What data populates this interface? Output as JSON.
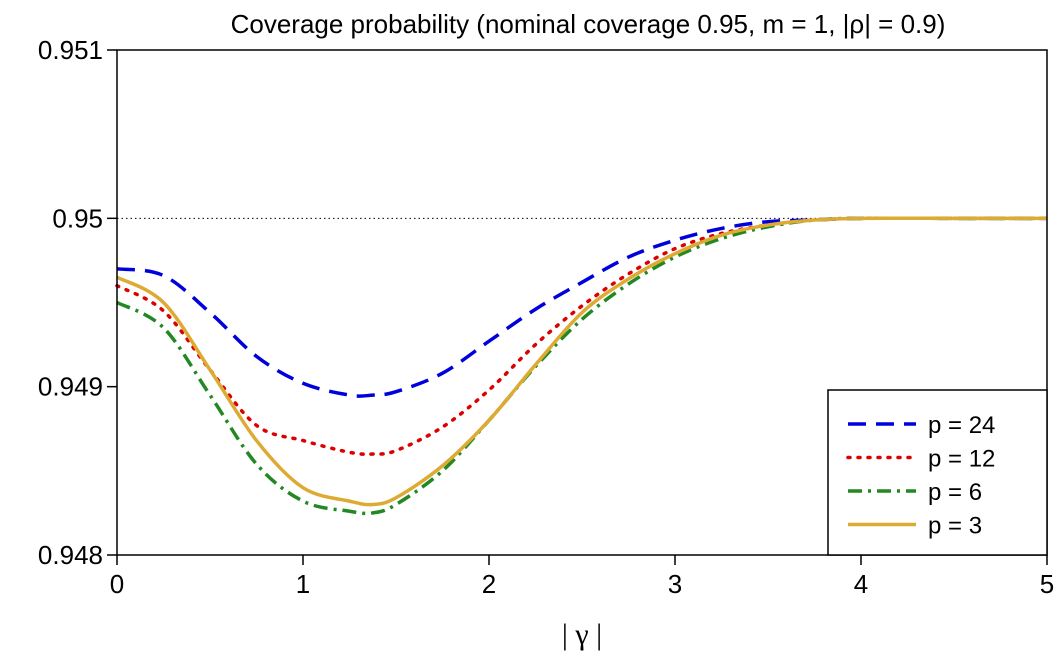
{
  "chart_data": {
    "type": "line",
    "title": "Coverage probability (nominal coverage 0.95, m = 1, |ρ| = 0.9)",
    "xlabel": "| γ |",
    "ylabel": "",
    "xlim": [
      0,
      5
    ],
    "ylim": [
      0.948,
      0.951
    ],
    "xticks": [
      0,
      1,
      2,
      3,
      4,
      5
    ],
    "xtick_labels": [
      "0",
      "1",
      "2",
      "3",
      "4",
      "5"
    ],
    "yticks": [
      0.948,
      0.949,
      0.95,
      0.951
    ],
    "ytick_labels": [
      "0.948",
      "0.949",
      "0.95",
      "0.951"
    ],
    "reference_line": {
      "y": 0.95,
      "style": "dotted",
      "color": "#000000"
    },
    "grid": false,
    "legend_position": "bottom-right",
    "x": [
      0,
      0.25,
      0.5,
      0.75,
      1.0,
      1.25,
      1.375,
      1.5,
      1.75,
      2.0,
      2.25,
      2.5,
      2.75,
      3.0,
      3.25,
      3.5,
      3.75,
      4.0,
      4.5,
      5.0
    ],
    "series": [
      {
        "name": "p = 24",
        "color": "#0000dd",
        "dash": "dashed",
        "values": [
          0.9497,
          0.94966,
          0.94944,
          0.94918,
          0.94902,
          0.94895,
          0.94895,
          0.94897,
          0.94908,
          0.94927,
          0.94946,
          0.94962,
          0.94977,
          0.94987,
          0.94994,
          0.94998,
          0.94999,
          0.95,
          0.95,
          0.95
        ]
      },
      {
        "name": "p = 12",
        "color": "#dd0000",
        "dash": "dotted",
        "values": [
          0.9496,
          0.94945,
          0.9491,
          0.94877,
          0.94868,
          0.94861,
          0.9486,
          0.94862,
          0.94876,
          0.94898,
          0.94925,
          0.94948,
          0.94967,
          0.94982,
          0.94991,
          0.94996,
          0.94999,
          0.95,
          0.95,
          0.95
        ]
      },
      {
        "name": "p = 6",
        "color": "#228822",
        "dash": "dashdot",
        "values": [
          0.9495,
          0.94935,
          0.94895,
          0.94854,
          0.94832,
          0.94826,
          0.94825,
          0.9483,
          0.9485,
          0.9488,
          0.94912,
          0.9494,
          0.94961,
          0.94977,
          0.94988,
          0.94995,
          0.94999,
          0.95,
          0.95,
          0.95
        ]
      },
      {
        "name": "p = 3",
        "color": "#ddaa33",
        "dash": "solid",
        "values": [
          0.94965,
          0.9495,
          0.9491,
          0.94868,
          0.9484,
          0.94832,
          0.9483,
          0.94834,
          0.94853,
          0.9488,
          0.94913,
          0.94944,
          0.94964,
          0.94979,
          0.9499,
          0.94996,
          0.94999,
          0.95,
          0.95,
          0.95
        ]
      }
    ]
  }
}
